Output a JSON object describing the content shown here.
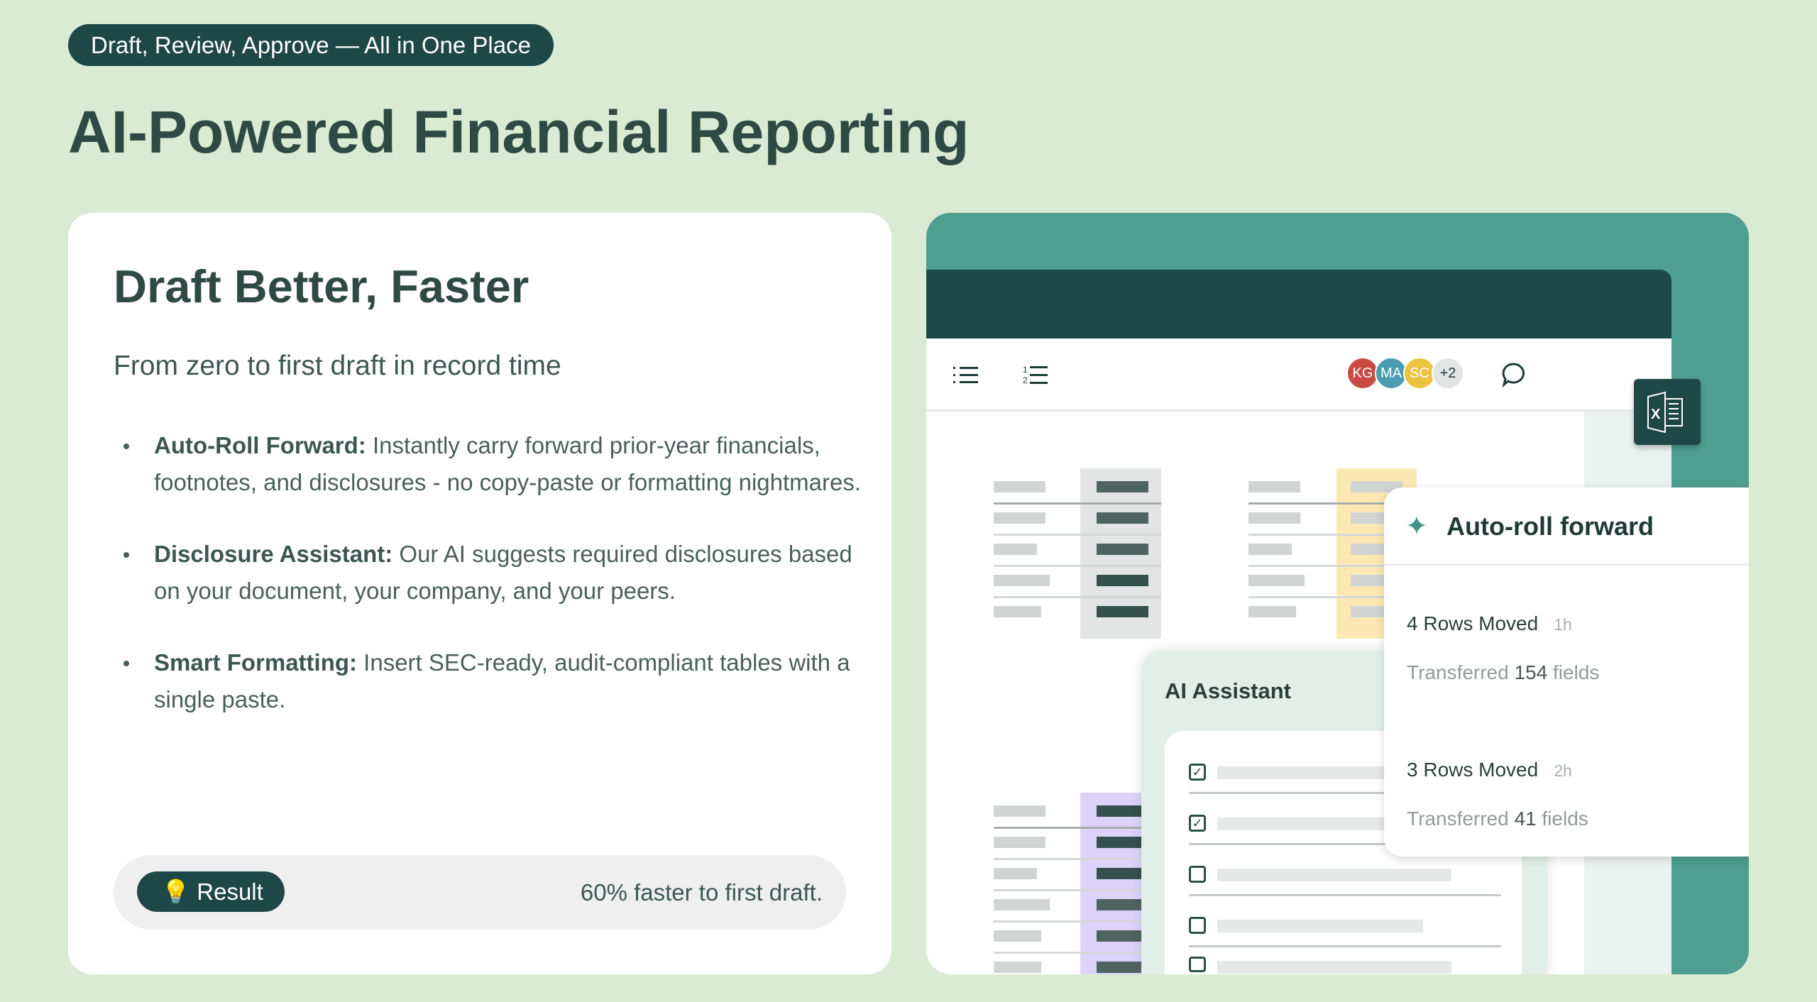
{
  "hero": {
    "tagline": "Draft, Review, Approve — All in One Place",
    "title": "AI-Powered Financial Reporting"
  },
  "card": {
    "heading": "Draft Better, Faster",
    "subheading": "From zero to first draft in record time",
    "bullets": [
      {
        "label": "Auto-Roll Forward:",
        "text": " Instantly carry forward prior-year financials, footnotes, and disclosures - no copy-paste or formatting nightmares."
      },
      {
        "label": "Disclosure Assistant:",
        "text": " Our AI suggests required disclosures based on your document, your company, and your peers."
      },
      {
        "label": "Smart Formatting:",
        "text": " Insert SEC-ready, audit-compliant tables with a single paste."
      }
    ],
    "result": {
      "icon": "lightbulb-icon",
      "label": "Result",
      "text": "60% faster to first draft."
    }
  },
  "mockup": {
    "toolbar": {
      "icons": [
        "bullet-list-icon",
        "numbered-list-icon",
        "comment-icon"
      ],
      "avatars": [
        {
          "initials": "KG",
          "color": "#c94b44"
        },
        {
          "initials": "MA",
          "color": "#4a9db1"
        },
        {
          "initials": "SC",
          "color": "#eac43e"
        }
      ],
      "more_count": "+2"
    },
    "excel_icon": "excel-icon",
    "ai_assistant": {
      "title": "AI Assistant",
      "checklist": [
        true,
        true,
        false,
        false,
        false
      ]
    },
    "auto_roll": {
      "title": "Auto-roll forward",
      "icon": "sparkle-icon",
      "entries": [
        {
          "title": "4 Rows Moved",
          "time": "1h",
          "prefix": "Transferred ",
          "count": "154",
          "suffix": " fields"
        },
        {
          "title": "3 Rows Moved",
          "time": "2h",
          "prefix": "Transferred ",
          "count": "41",
          "suffix": " fields"
        }
      ]
    },
    "colors": {
      "panel": "#4e9e91",
      "header": "#1e4848",
      "highlight_yellow": "#fde8b4",
      "highlight_purple": "#ddd3fa",
      "highlight_gray": "#e3e4e4"
    }
  }
}
